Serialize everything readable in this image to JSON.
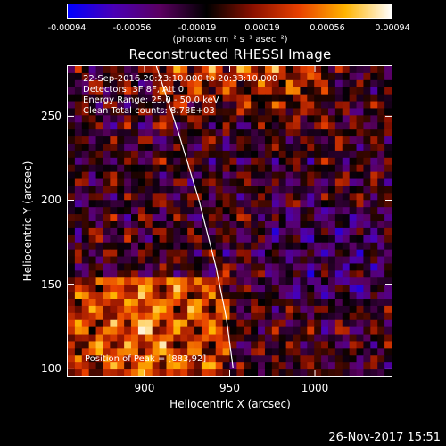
{
  "colorbar": {
    "ticks": [
      "-0.00094",
      "-0.00056",
      "-0.00019",
      "0.00019",
      "0.00056",
      "0.00094"
    ],
    "unit_label": "(photons cm⁻² s⁻¹ asec⁻²)",
    "colors": [
      "#0000ff",
      "#4a00b5",
      "#5a0060",
      "#000000",
      "#8a1000",
      "#e84000",
      "#ffb400",
      "#ffffff"
    ]
  },
  "chart_data": {
    "type": "heatmap",
    "title": "Reconstructed RHESSI Image",
    "xlabel": "Heliocentric X (arcsec)",
    "ylabel": "Heliocentric Y (arcsec)",
    "xlim": [
      855,
      1045
    ],
    "ylim": [
      95,
      280
    ],
    "xticks": [
      900,
      950,
      1000
    ],
    "yticks": [
      100,
      150,
      200,
      250
    ],
    "annotations": [
      "22-Sep-2016 20:23:10.000 to 20:33:10.000",
      "Detectors: 3F 8F, Att 0",
      "Energy Range: 25.0 - 50.0 keV",
      "Clean     Total counts: 8.78E+03"
    ],
    "peak_label": "Position of Peak = [883,92]",
    "limb_curve": [
      [
        907,
        280
      ],
      [
        920,
        240
      ],
      [
        932,
        200
      ],
      [
        942,
        160
      ],
      [
        948,
        130
      ],
      [
        952,
        100
      ]
    ],
    "value_range": [
      -0.00094,
      0.00094
    ]
  },
  "footer": {
    "timestamp": "26-Nov-2017 15:51"
  }
}
